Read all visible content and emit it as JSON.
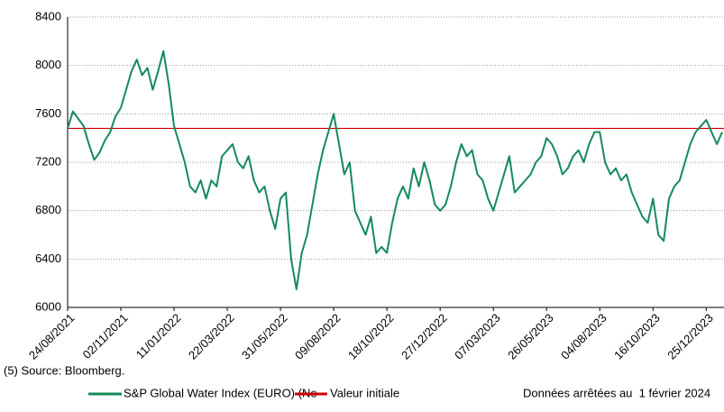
{
  "chart_data": {
    "type": "line",
    "categories": [
      "24/08/2021",
      null,
      null,
      null,
      null,
      null,
      null,
      null,
      null,
      null,
      "02/11/2021",
      null,
      null,
      null,
      null,
      null,
      null,
      null,
      null,
      null,
      "11/01/2022",
      null,
      null,
      null,
      null,
      null,
      null,
      null,
      null,
      null,
      "22/03/2022",
      null,
      null,
      null,
      null,
      null,
      null,
      null,
      null,
      null,
      "31/05/2022",
      null,
      null,
      null,
      null,
      null,
      null,
      null,
      null,
      null,
      "09/08/2022",
      null,
      null,
      null,
      null,
      null,
      null,
      null,
      null,
      null,
      "18/10/2022",
      null,
      null,
      null,
      null,
      null,
      null,
      null,
      null,
      null,
      "27/12/2022",
      null,
      null,
      null,
      null,
      null,
      null,
      null,
      null,
      null,
      "07/03/2023",
      null,
      null,
      null,
      null,
      null,
      null,
      null,
      null,
      null,
      "26/05/2023",
      null,
      null,
      null,
      null,
      null,
      null,
      null,
      null,
      null,
      "04/08/2023",
      null,
      null,
      null,
      null,
      null,
      null,
      null,
      null,
      null,
      "16/10/2023",
      null,
      null,
      null,
      null,
      null,
      null,
      null,
      null,
      null,
      "25/12/2023",
      null,
      null,
      null
    ],
    "series": [
      {
        "name": "S&P Global Water Index (EURO) (Ne",
        "color": "#138a5a",
        "values": [
          7480,
          7620,
          7560,
          7500,
          7350,
          7220,
          7280,
          7380,
          7450,
          7580,
          7650,
          7800,
          7950,
          8050,
          7920,
          7980,
          7800,
          7950,
          8120,
          7850,
          7500,
          7350,
          7200,
          7000,
          6950,
          7050,
          6900,
          7050,
          7000,
          7250,
          7300,
          7350,
          7200,
          7150,
          7250,
          7050,
          6950,
          7000,
          6800,
          6650,
          6900,
          6950,
          6400,
          6150,
          6450,
          6600,
          6850,
          7100,
          7300,
          7450,
          7600,
          7350,
          7100,
          7200,
          6800,
          6700,
          6600,
          6750,
          6450,
          6500,
          6450,
          6700,
          6900,
          7000,
          6900,
          7150,
          7000,
          7200,
          7050,
          6850,
          6800,
          6850,
          7000,
          7200,
          7350,
          7250,
          7300,
          7100,
          7050,
          6900,
          6800,
          6950,
          7100,
          7250,
          6950,
          7000,
          7050,
          7100,
          7200,
          7250,
          7400,
          7350,
          7250,
          7100,
          7150,
          7250,
          7300,
          7200,
          7350,
          7450,
          7450,
          7200,
          7100,
          7150,
          7050,
          7100,
          6950,
          6850,
          6750,
          6700,
          6900,
          6600,
          6550,
          6900,
          7000,
          7050,
          7200,
          7350,
          7450,
          7500,
          7550,
          7450,
          7350,
          7450
        ]
      }
    ],
    "reference_line": {
      "name": "Valeur initiale",
      "value": 7480,
      "color": "#cc0000"
    },
    "ylim": [
      6000,
      8400
    ],
    "yticks": [
      6000,
      6400,
      6800,
      7200,
      7600,
      8000,
      8400
    ],
    "grid": true,
    "source": "(5) Source: Bloomberg.",
    "note": "Données arrêtées au  1 février 2024"
  }
}
